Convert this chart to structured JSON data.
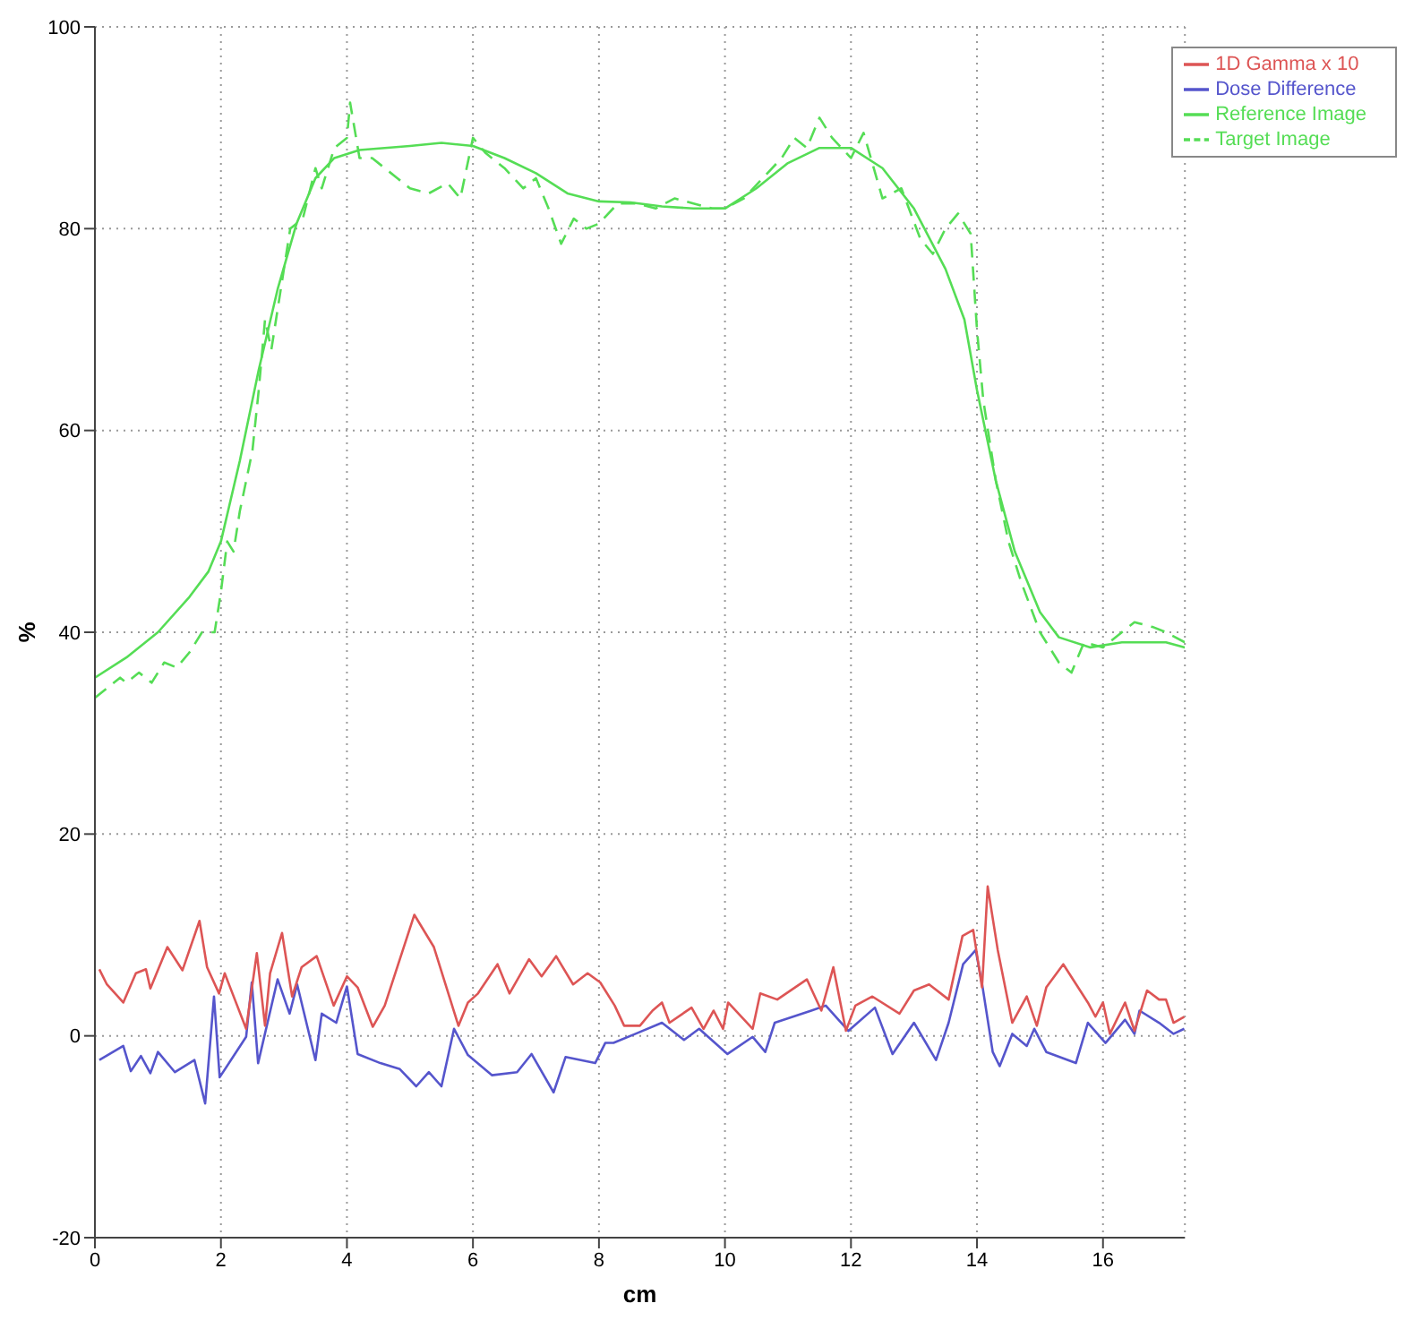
{
  "chart_data": {
    "type": "line",
    "xlabel": "cm",
    "ylabel": "%",
    "xlim": [
      0,
      17.3
    ],
    "xticks": [
      0,
      2,
      4,
      6,
      8,
      10,
      12,
      14,
      16
    ],
    "ylim": [
      -20,
      100
    ],
    "yticks": [
      -20,
      0,
      20,
      40,
      60,
      80,
      100
    ],
    "grid": true,
    "legend": "top right",
    "marker": "none",
    "series": [
      {
        "name": "Reference Image",
        "color": "#55dd55",
        "line_style": "solid",
        "x": [
          0,
          0.5,
          1,
          1.5,
          1.8,
          2,
          2.3,
          2.6,
          2.9,
          3.2,
          3.5,
          3.8,
          4.2,
          5,
          5.5,
          6,
          6.5,
          7,
          7.5,
          8,
          8.5,
          9,
          9.5,
          10,
          10.5,
          11,
          11.5,
          12,
          12.5,
          13,
          13.5,
          13.8,
          14,
          14.3,
          14.6,
          15,
          15.3,
          15.8,
          16.3,
          17,
          17.3
        ],
        "values": [
          35.5,
          37.5,
          40,
          43.5,
          46,
          49,
          57,
          66,
          74,
          80.5,
          85,
          87,
          87.8,
          88.2,
          88.5,
          88.2,
          87,
          85.5,
          83.5,
          82.7,
          82.6,
          82.2,
          82,
          82,
          84,
          86.5,
          88,
          88,
          86,
          82,
          76,
          71,
          64,
          55,
          48,
          42,
          39.5,
          38.5,
          39,
          39,
          38.5
        ]
      },
      {
        "name": "Target Image",
        "color": "#55dd55",
        "line_style": "dashed",
        "x": [
          0,
          0.2,
          0.4,
          0.5,
          0.7,
          0.9,
          1.1,
          1.3,
          1.5,
          1.7,
          1.9,
          2,
          2.1,
          2.2,
          2.3,
          2.5,
          2.6,
          2.7,
          2.8,
          3,
          3.1,
          3.3,
          3.5,
          3.6,
          3.8,
          4,
          4.05,
          4.2,
          4.4,
          4.6,
          4.8,
          5,
          5.3,
          5.6,
          5.8,
          6,
          6.2,
          6.5,
          6.8,
          7,
          7.2,
          7.4,
          7.6,
          7.8,
          8,
          8.3,
          8.6,
          8.9,
          9.2,
          9.5,
          9.8,
          10,
          10.3,
          10.6,
          10.9,
          11.1,
          11.3,
          11.5,
          11.7,
          12,
          12.2,
          12.5,
          12.8,
          13.1,
          13.3,
          13.5,
          13.7,
          13.9,
          14,
          14.1,
          14.3,
          14.5,
          14.7,
          15,
          15.3,
          15.5,
          15.7,
          16,
          16.3,
          16.5,
          16.8,
          17,
          17.3
        ],
        "values": [
          33.5,
          34.5,
          35.5,
          35,
          36,
          35,
          37,
          36.5,
          38,
          40,
          40,
          44,
          49,
          48,
          52,
          58,
          64,
          71,
          68,
          76,
          80,
          81,
          86,
          84,
          88,
          89,
          92.5,
          87,
          87,
          86,
          85,
          84,
          83.5,
          84.5,
          83,
          89,
          87.5,
          86,
          84,
          85,
          82,
          78.5,
          81,
          80,
          80.5,
          82.5,
          82.5,
          82,
          83,
          82.5,
          82,
          82,
          83,
          85,
          87,
          89,
          88,
          91,
          89,
          87,
          89.5,
          83,
          84,
          79,
          77.5,
          80,
          81.5,
          79.5,
          70,
          63,
          55,
          49,
          45,
          40,
          37,
          36,
          39,
          38.5,
          40,
          41,
          40.5,
          40,
          39
        ]
      },
      {
        "name": "Dose Difference",
        "color": "#5555cc",
        "line_style": "solid",
        "x": [
          0.07,
          0.45,
          0.57,
          0.73,
          0.88,
          1,
          1.27,
          1.58,
          1.75,
          1.89,
          1.98,
          2.4,
          2.49,
          2.59,
          2.9,
          3.09,
          3.21,
          3.5,
          3.6,
          3.83,
          4,
          4.17,
          4.53,
          4.84,
          5.1,
          5.3,
          5.5,
          5.7,
          5.92,
          6.3,
          6.7,
          6.93,
          7.28,
          7.47,
          7.94,
          8.1,
          8.23,
          8.58,
          9,
          9.35,
          9.59,
          10.04,
          10.44,
          10.64,
          10.79,
          11.37,
          11.6,
          11.96,
          12.38,
          12.66,
          13,
          13.35,
          13.55,
          13.78,
          13.98,
          14.09,
          14.25,
          14.36,
          14.56,
          14.79,
          14.91,
          15.1,
          15.57,
          15.76,
          16.04,
          16.35,
          16.5,
          16.58,
          16.89,
          17.12,
          17.29
        ],
        "values": [
          -2.4,
          -1,
          -3.5,
          -2,
          -3.7,
          -1.6,
          -3.6,
          -2.4,
          -6.7,
          3.9,
          -4.1,
          -0.1,
          5.3,
          -2.7,
          5.6,
          2.2,
          5.1,
          -2.4,
          2.2,
          1.3,
          4.9,
          -1.8,
          -2.7,
          -3.3,
          -5,
          -3.6,
          -5,
          0.7,
          -1.9,
          -3.9,
          -3.6,
          -1.8,
          -5.6,
          -2.1,
          -2.7,
          -0.7,
          -0.7,
          0.2,
          1.3,
          -0.4,
          0.7,
          -1.8,
          -0.1,
          -1.6,
          1.3,
          2.5,
          3,
          0.5,
          2.8,
          -1.8,
          1.3,
          -2.4,
          1.3,
          7.1,
          8.5,
          4.8,
          -1.6,
          -3,
          0.2,
          -1,
          0.7,
          -1.6,
          -2.7,
          1.3,
          -0.7,
          1.6,
          0.2,
          2.5,
          1.3,
          0.2,
          0.7
        ]
      },
      {
        "name": "1D Gamma x 10",
        "color": "#dd5555",
        "line_style": "solid",
        "x": [
          0.07,
          0.19,
          0.45,
          0.65,
          0.81,
          0.88,
          1.15,
          1.39,
          1.66,
          1.78,
          1.97,
          2.06,
          2.4,
          2.57,
          2.7,
          2.78,
          2.97,
          3.13,
          3.28,
          3.52,
          3.79,
          4,
          4.17,
          4.41,
          4.6,
          5.07,
          5.38,
          5.77,
          5.92,
          6.08,
          6.39,
          6.58,
          6.89,
          7.09,
          7.32,
          7.59,
          7.82,
          8.02,
          8.25,
          8.4,
          8.46,
          8.65,
          8.85,
          9,
          9.12,
          9.47,
          9.66,
          9.82,
          9.97,
          10.05,
          10.44,
          10.56,
          10.83,
          11.3,
          11.53,
          11.72,
          11.92,
          12.07,
          12.34,
          12.77,
          13,
          13.24,
          13.55,
          13.77,
          13.94,
          14.08,
          14.17,
          14.33,
          14.56,
          14.79,
          14.95,
          15.1,
          15.37,
          15.76,
          15.88,
          16,
          16.11,
          16.35,
          16.5,
          16.7,
          16.89,
          17,
          17.12,
          17.29
        ],
        "values": [
          6.6,
          5.1,
          3.3,
          6.2,
          6.6,
          4.7,
          8.8,
          6.5,
          11.4,
          6.8,
          4.2,
          6.2,
          0.7,
          8.2,
          1,
          6.2,
          10.2,
          3.9,
          6.8,
          7.9,
          3,
          5.9,
          4.8,
          0.9,
          3,
          12,
          8.8,
          1,
          3.3,
          4.2,
          7.1,
          4.2,
          7.6,
          5.9,
          7.9,
          5.1,
          6.2,
          5.3,
          3,
          1,
          1,
          1,
          2.5,
          3.3,
          1.3,
          2.8,
          0.7,
          2.5,
          0.7,
          3.3,
          0.7,
          4.2,
          3.6,
          5.6,
          2.5,
          6.8,
          0.5,
          3,
          3.9,
          2.2,
          4.5,
          5.1,
          3.6,
          9.9,
          10.5,
          4.8,
          14.8,
          8.5,
          1.3,
          3.9,
          1,
          4.8,
          7.1,
          3.3,
          1.9,
          3.3,
          0.2,
          3.3,
          0.5,
          4.5,
          3.6,
          3.6,
          1.3,
          1.9
        ]
      }
    ]
  }
}
